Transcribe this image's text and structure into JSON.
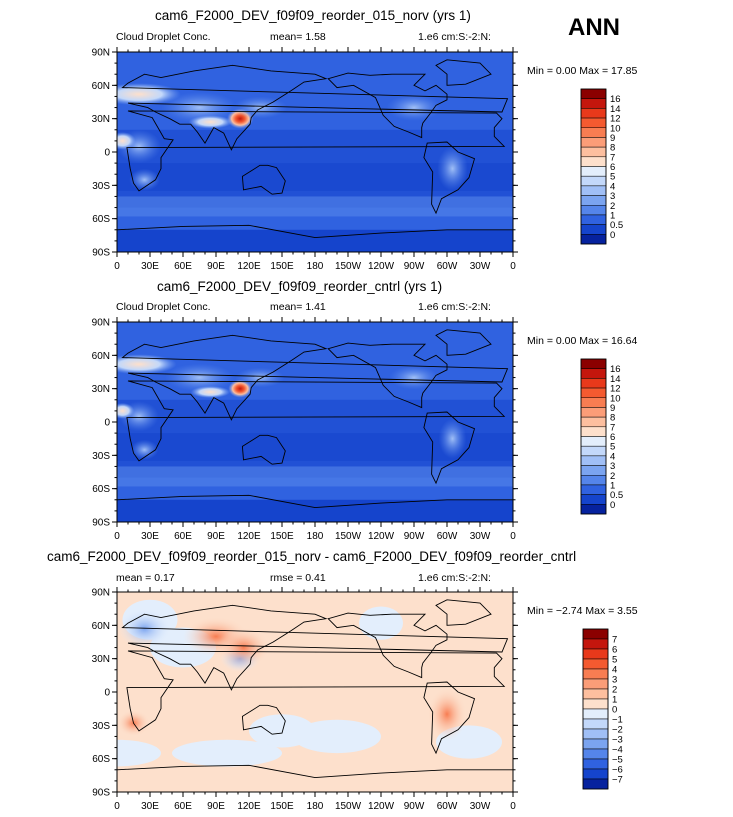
{
  "season_label": "ANN",
  "panels": [
    {
      "title": "cam6_F2000_DEV_f09f09_reorder_015_norv (yrs 1)",
      "left_label": "Cloud Droplet Conc.",
      "stat_text": "mean=    1.58",
      "units": "1.e6 cm:S:-2:N:",
      "minmax": "Min =    0.00 Max =   17.85",
      "colorbar_labels": [
        "16",
        "14",
        "12",
        "10",
        "9",
        "8",
        "7",
        "6",
        "5",
        "4",
        "3",
        "2",
        "1",
        "0.5",
        "0"
      ],
      "colorbar_colors": [
        "#8b0000",
        "#c4160d",
        "#e8391b",
        "#f45a30",
        "#f87d52",
        "#fb9d78",
        "#fdbf9f",
        "#fde0cc",
        "#e3eefc",
        "#c3d8fa",
        "#a0bff6",
        "#7ba4f0",
        "#5585ea",
        "#3062e0",
        "#1544cc",
        "#06229e"
      ]
    },
    {
      "title": "cam6_F2000_DEV_f09f09_reorder_cntrl (yrs 1)",
      "left_label": "Cloud Droplet Conc.",
      "stat_text": "mean=    1.41",
      "units": "1.e6 cm:S:-2:N:",
      "minmax": "Min =    0.00 Max =   16.64",
      "colorbar_labels": [
        "16",
        "14",
        "12",
        "10",
        "9",
        "8",
        "7",
        "6",
        "5",
        "4",
        "3",
        "2",
        "1",
        "0.5",
        "0"
      ],
      "colorbar_colors": [
        "#8b0000",
        "#c4160d",
        "#e8391b",
        "#f45a30",
        "#f87d52",
        "#fb9d78",
        "#fdbf9f",
        "#fde0cc",
        "#e3eefc",
        "#c3d8fa",
        "#a0bff6",
        "#7ba4f0",
        "#5585ea",
        "#3062e0",
        "#1544cc",
        "#06229e"
      ]
    },
    {
      "title": "cam6_F2000_DEV_f09f09_reorder_015_norv - cam6_F2000_DEV_f09f09_reorder_cntrl",
      "left_label": "mean =    0.17",
      "stat_text": "rmse =    0.41",
      "units": "1.e6 cm:S:-2:N:",
      "minmax": "Min =  −2.74 Max =    3.55",
      "colorbar_labels": [
        "7",
        "6",
        "5",
        "4",
        "3",
        "2",
        "1",
        "0",
        "−1",
        "−2",
        "−3",
        "−4",
        "−5",
        "−6",
        "−7"
      ],
      "colorbar_colors": [
        "#8b0000",
        "#c4160d",
        "#e8391b",
        "#f45a30",
        "#f87d52",
        "#fb9d78",
        "#fdbf9f",
        "#fde0cc",
        "#e3eefc",
        "#c3d8fa",
        "#a0bff6",
        "#7ba4f0",
        "#5585ea",
        "#3062e0",
        "#1544cc",
        "#06229e"
      ]
    }
  ],
  "chart_data": {
    "type": "heatmap",
    "x_tick_labels": [
      "0",
      "30E",
      "60E",
      "90E",
      "120E",
      "150E",
      "180",
      "150W",
      "120W",
      "90W",
      "60W",
      "30W",
      "0"
    ],
    "y_tick_labels": [
      "90N",
      "60N",
      "30N",
      "0",
      "30S",
      "60S",
      "90S"
    ],
    "xlim": [
      0,
      360
    ],
    "ylim": [
      -90,
      90
    ]
  }
}
